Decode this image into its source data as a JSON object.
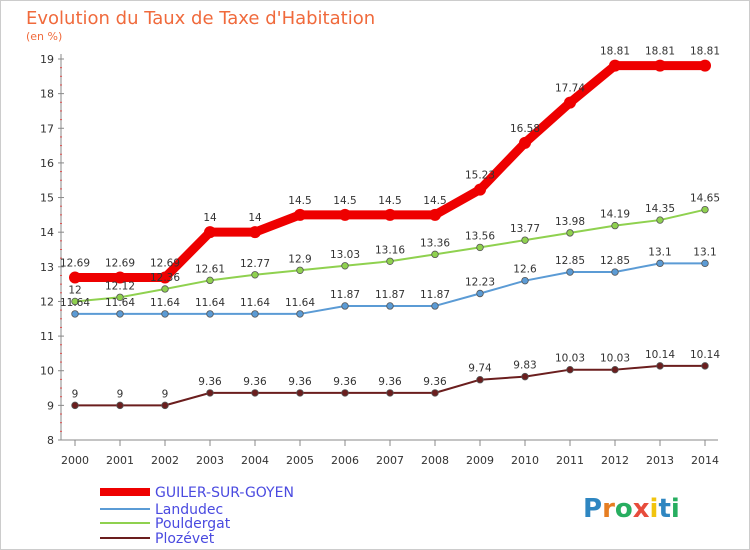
{
  "header": {
    "title": "Evolution du Taux de Taxe d'Habitation",
    "unit_label": "(en %)"
  },
  "brand": {
    "logo_text": "Proxiti",
    "letters": [
      {
        "ch": "P",
        "color": "#2e86c1"
      },
      {
        "ch": "r",
        "color": "#e67e22"
      },
      {
        "ch": "o",
        "color": "#27ae60"
      },
      {
        "ch": "x",
        "color": "#e74c3c"
      },
      {
        "ch": "i",
        "color": "#f1c40f"
      },
      {
        "ch": "t",
        "color": "#2e86c1"
      },
      {
        "ch": "i",
        "color": "#27ae60"
      }
    ]
  },
  "chart_data": {
    "type": "line",
    "title": "Evolution du Taux de Taxe d'Habitation",
    "subtitle": "(en %)",
    "xlabel": "",
    "ylabel": "",
    "x": [
      "2000",
      "2001",
      "2002",
      "2003",
      "2004",
      "2005",
      "2006",
      "2007",
      "2008",
      "2009",
      "2010",
      "2011",
      "2012",
      "2013",
      "2014"
    ],
    "yticks": [
      8,
      9,
      10,
      11,
      12,
      13,
      14,
      15,
      16,
      17,
      18,
      19
    ],
    "ylim": [
      8,
      19
    ],
    "grid": false,
    "legend_position": "bottom-left",
    "series": [
      {
        "name": "GUILER-SUR-GOYEN",
        "color": "#ee0000",
        "values": [
          12.69,
          12.69,
          12.69,
          14,
          14,
          14.5,
          14.5,
          14.5,
          14.5,
          15.23,
          16.58,
          17.74,
          18.81,
          18.81,
          18.81
        ],
        "labels": [
          "12.69",
          "12.69",
          "12.69",
          "14",
          "14",
          "14.5",
          "14.5",
          "14.5",
          "14.5",
          "15.23",
          "16.58",
          "17.74",
          "18.81",
          "18.81",
          "18.81"
        ]
      },
      {
        "name": "Landudec",
        "color": "#5b9bd5",
        "values": [
          11.64,
          11.64,
          11.64,
          11.64,
          11.64,
          11.64,
          11.87,
          11.87,
          11.87,
          12.23,
          12.6,
          12.85,
          12.85,
          13.1,
          13.1
        ],
        "labels": [
          "11.64",
          "11.64",
          "11.64",
          "11.64",
          "11.64",
          "11.64",
          "11.87",
          "11.87",
          "11.87",
          "12.23",
          "12.6",
          "12.85",
          "12.85",
          "13.1",
          "13.1"
        ]
      },
      {
        "name": "Pouldergat",
        "color": "#8fd14f",
        "values": [
          12,
          12.12,
          12.36,
          12.61,
          12.77,
          12.9,
          13.03,
          13.16,
          13.36,
          13.56,
          13.77,
          13.98,
          14.19,
          14.35,
          14.65
        ],
        "labels": [
          "12",
          "12.12",
          "12.36",
          "12.61",
          "12.77",
          "12.9",
          "13.03",
          "13.16",
          "13.36",
          "13.56",
          "13.77",
          "13.98",
          "14.19",
          "14.35",
          "14.65"
        ]
      },
      {
        "name": "Plozévet",
        "color": "#6b1e1e",
        "values": [
          9,
          9,
          9,
          9.36,
          9.36,
          9.36,
          9.36,
          9.36,
          9.36,
          9.74,
          9.83,
          10.03,
          10.03,
          10.14,
          10.14
        ],
        "labels": [
          "9",
          "9",
          "9",
          "9.36",
          "9.36",
          "9.36",
          "9.36",
          "9.36",
          "9.36",
          "9.74",
          "9.83",
          "10.03",
          "10.03",
          "10.14",
          "10.14"
        ]
      }
    ]
  }
}
